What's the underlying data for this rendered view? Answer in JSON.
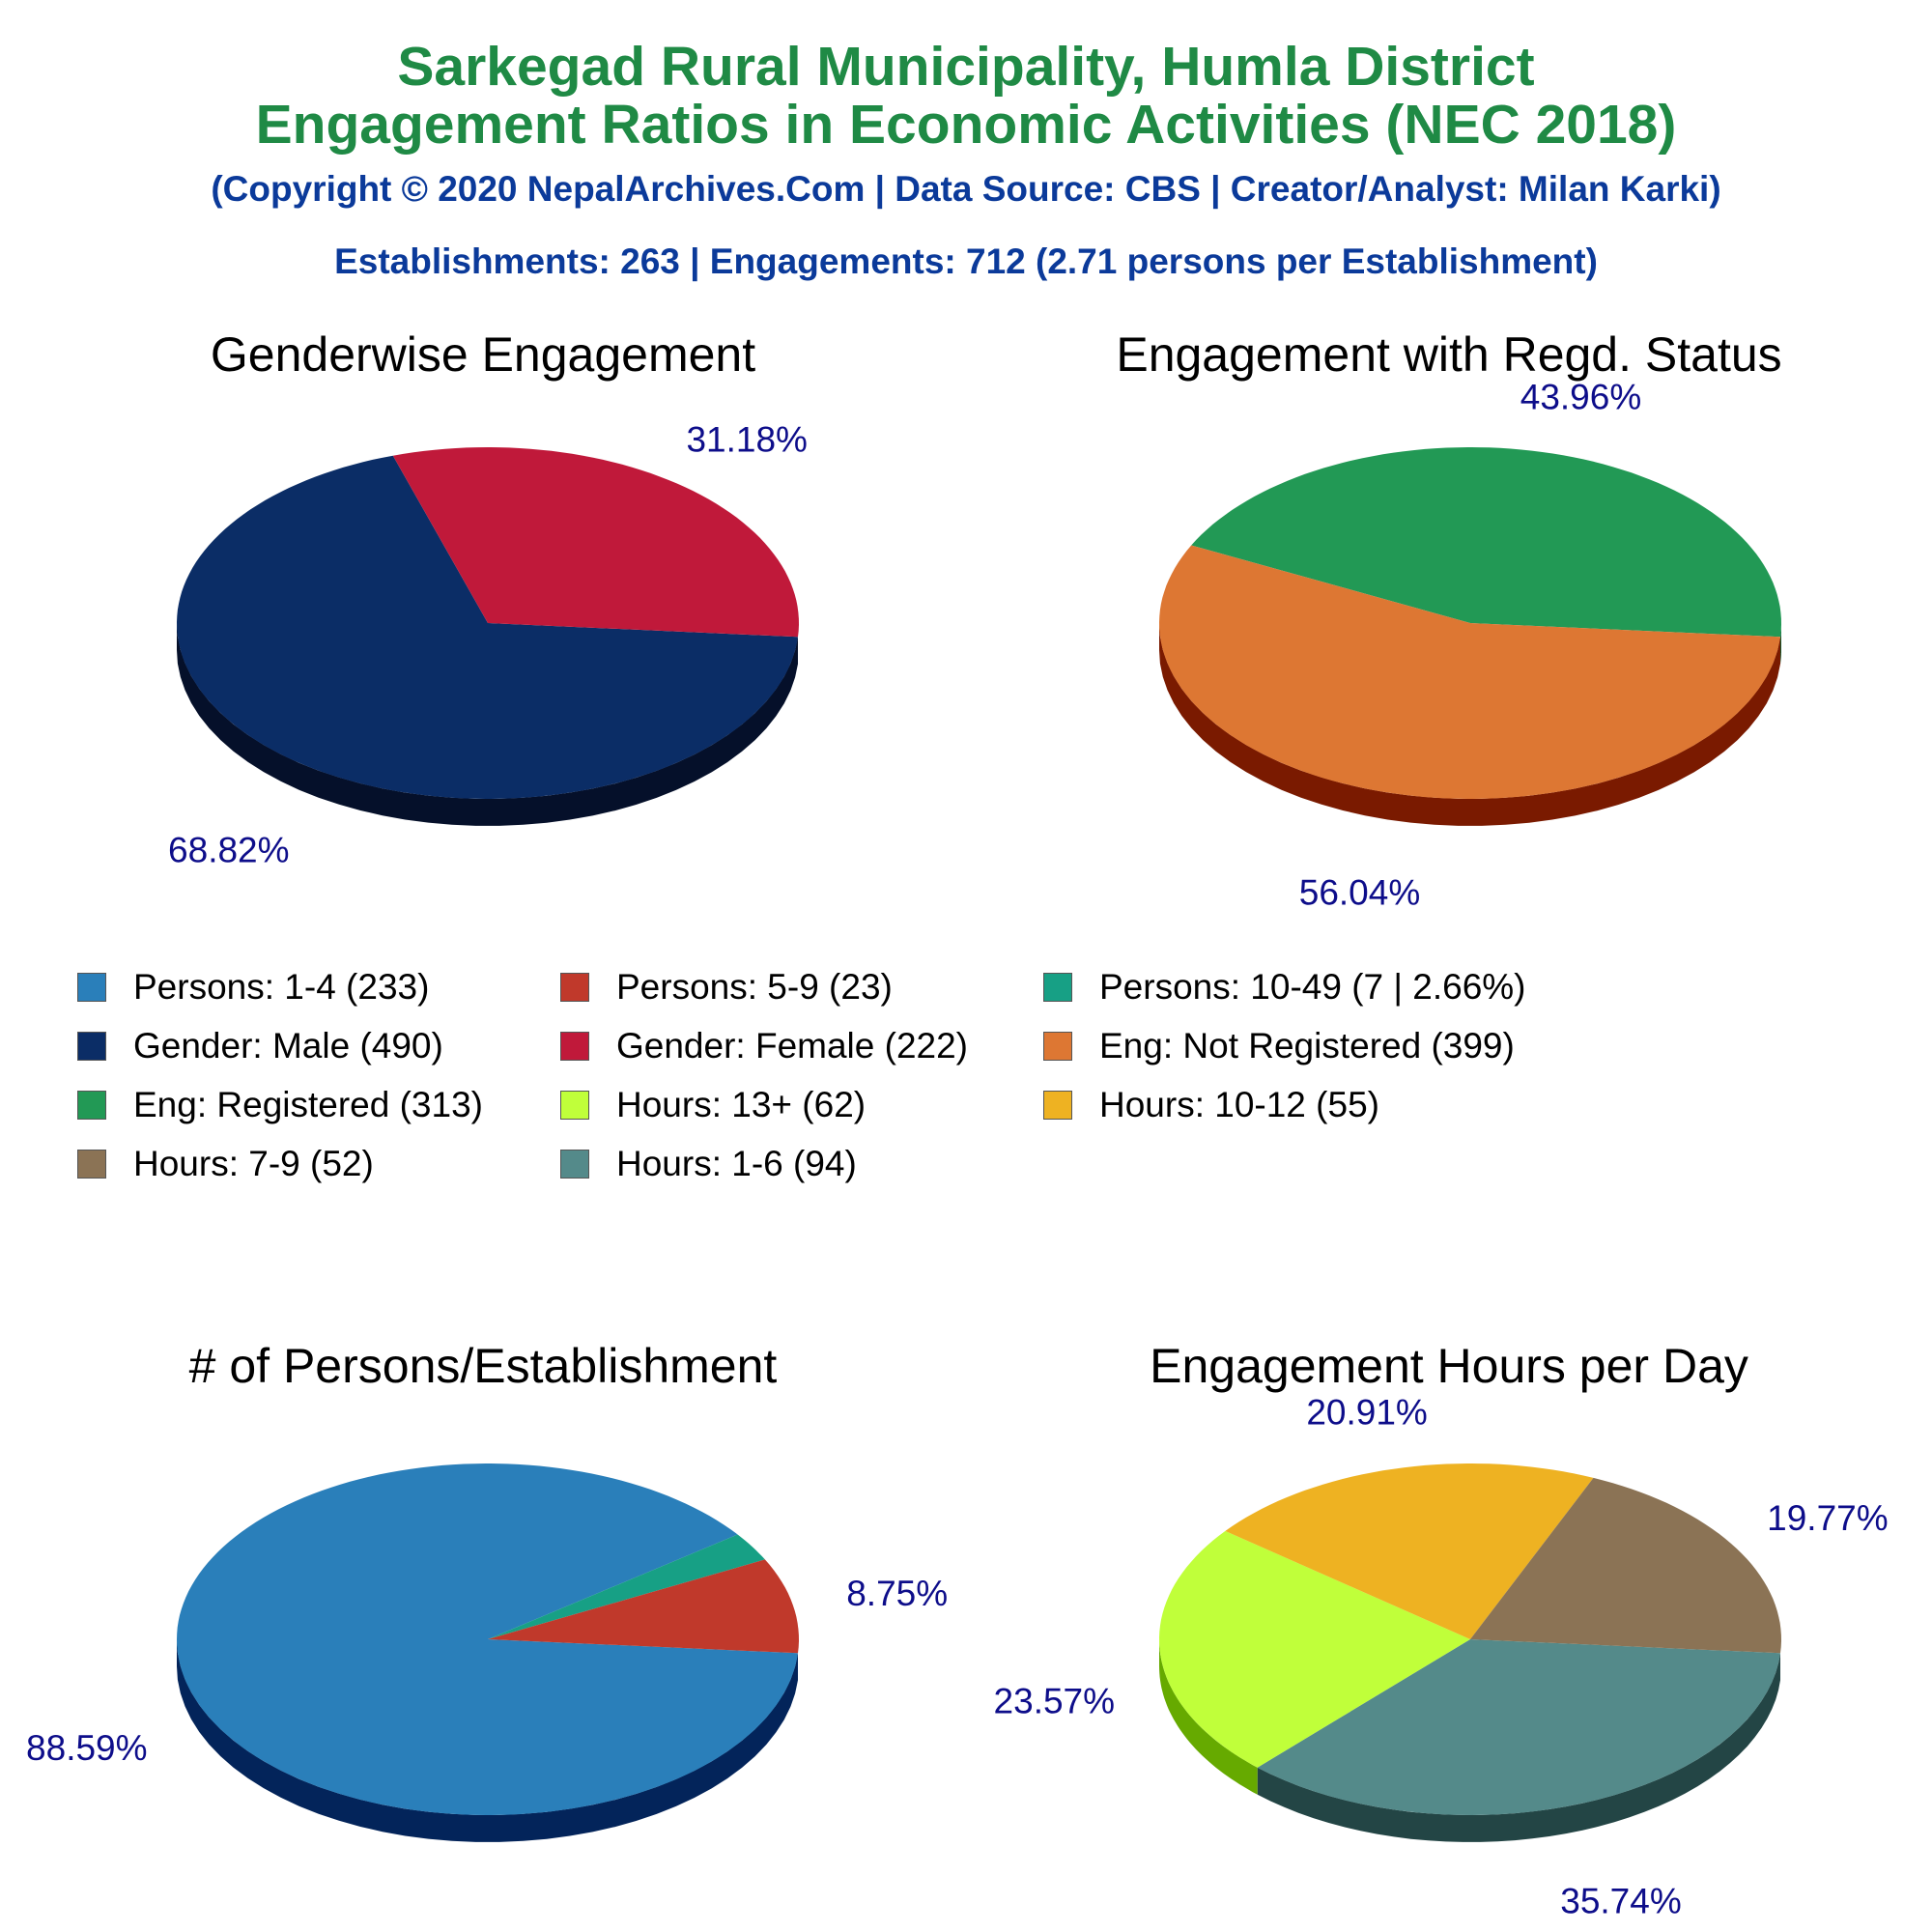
{
  "header": {
    "title_line1": "Sarkegad Rural Municipality, Humla District",
    "title_line2": "Engagement Ratios in Economic Activities (NEC 2018)",
    "copyright": "(Copyright © 2020 NepalArchives.Com | Data Source: CBS | Creator/Analyst: Milan Karki)",
    "summary": "Establishments: 263 | Engagements: 712 (2.71 persons per Establishment)"
  },
  "legend": [
    {
      "label": "Persons: 1-4 (233)",
      "color": "#2a7fba"
    },
    {
      "label": "Persons: 5-9 (23)",
      "color": "#c0392b"
    },
    {
      "label": "Persons: 10-49 (7 | 2.66%)",
      "color": "#17a085"
    },
    {
      "label": "Gender: Male (490)",
      "color": "#0b2d66"
    },
    {
      "label": "Gender: Female (222)",
      "color": "#c0193a"
    },
    {
      "label": "Eng: Not Registered (399)",
      "color": "#dd7733"
    },
    {
      "label": "Eng: Registered (313)",
      "color": "#229955"
    },
    {
      "label": "Hours: 13+ (62)",
      "color": "#c0ff3a"
    },
    {
      "label": "Hours: 10-12 (55)",
      "color": "#eeb222"
    },
    {
      "label": "Hours: 7-9 (52)",
      "color": "#8b7355"
    },
    {
      "label": "Hours: 1-6 (94)",
      "color": "#548a8a"
    }
  ],
  "chart_data": [
    {
      "type": "pie",
      "title": "Genderwise Engagement",
      "slices": [
        {
          "name": "Gender: Male (490)",
          "value": 68.82,
          "label": "68.82%",
          "color": "#0b2d66",
          "side": "#05102a"
        },
        {
          "name": "Gender: Female (222)",
          "value": 31.18,
          "label": "31.18%",
          "color": "#c0193a",
          "side": "#6b0000"
        }
      ]
    },
    {
      "type": "pie",
      "title": "Engagement with Regd. Status",
      "slices": [
        {
          "name": "Eng: Registered (313)",
          "value": 43.96,
          "label": "43.96%",
          "color": "#229955",
          "side": "#0f5a2e"
        },
        {
          "name": "Eng: Not Registered (399)",
          "value": 56.04,
          "label": "56.04%",
          "color": "#dd7733",
          "side": "#7a1a00"
        }
      ]
    },
    {
      "type": "pie",
      "title": "# of Persons/Establishment",
      "slices": [
        {
          "name": "Persons: 1-4 (233)",
          "value": 88.59,
          "label": "88.59%",
          "color": "#2a7fba",
          "side": "#03245a"
        },
        {
          "name": "Persons: 10-49 (7 | 2.66%)",
          "value": 2.66,
          "label": "",
          "color": "#17a085",
          "side": "#044a3a"
        },
        {
          "name": "Persons: 5-9 (23)",
          "value": 8.75,
          "label": "8.75%",
          "color": "#c0392b",
          "side": "#6b0000"
        }
      ]
    },
    {
      "type": "pie",
      "title": "Engagement Hours per Day",
      "slices": [
        {
          "name": "Hours: 1-6 (94)",
          "value": 35.74,
          "label": "35.74%",
          "color": "#548a8a",
          "side": "#234545"
        },
        {
          "name": "Hours: 13+ (62)",
          "value": 23.57,
          "label": "23.57%",
          "color": "#c0ff3a",
          "side": "#66aa00"
        },
        {
          "name": "Hours: 10-12 (55)",
          "value": 20.91,
          "label": "20.91%",
          "color": "#eeb222",
          "side": "#955a00"
        },
        {
          "name": "Hours: 7-9 (52)",
          "value": 19.77,
          "label": "19.77%",
          "color": "#8b7355",
          "side": "#4d3b22"
        }
      ]
    }
  ]
}
